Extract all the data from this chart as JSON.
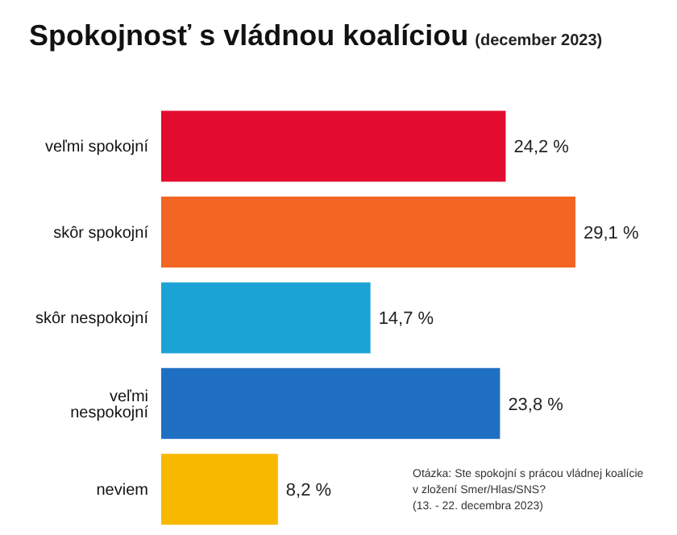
{
  "chart_data": {
    "type": "bar",
    "orientation": "horizontal",
    "title": "Spokojnosť s vládnou koalíciou",
    "subtitle": "(december 2023)",
    "categories": [
      "veľmi spokojní",
      "skôr spokojní",
      "skôr nespokojní",
      "veľmi nespokojní",
      "neviem"
    ],
    "values": [
      24.2,
      29.1,
      14.7,
      23.8,
      8.2
    ],
    "colors": [
      "#e30b2f",
      "#f26522",
      "#1ba3d6",
      "#1f6fc2",
      "#f9b800"
    ],
    "value_labels": [
      "24,2 %",
      "29,1 %",
      "14,7 %",
      "23,8 %",
      "8,2 %"
    ],
    "annotations": [
      "Otázka: Ste spokojní s prácou vládnej koalície",
      "v zložení Smer/Hlas/SNS?",
      "(13. - 22. decembra 2023)"
    ]
  }
}
